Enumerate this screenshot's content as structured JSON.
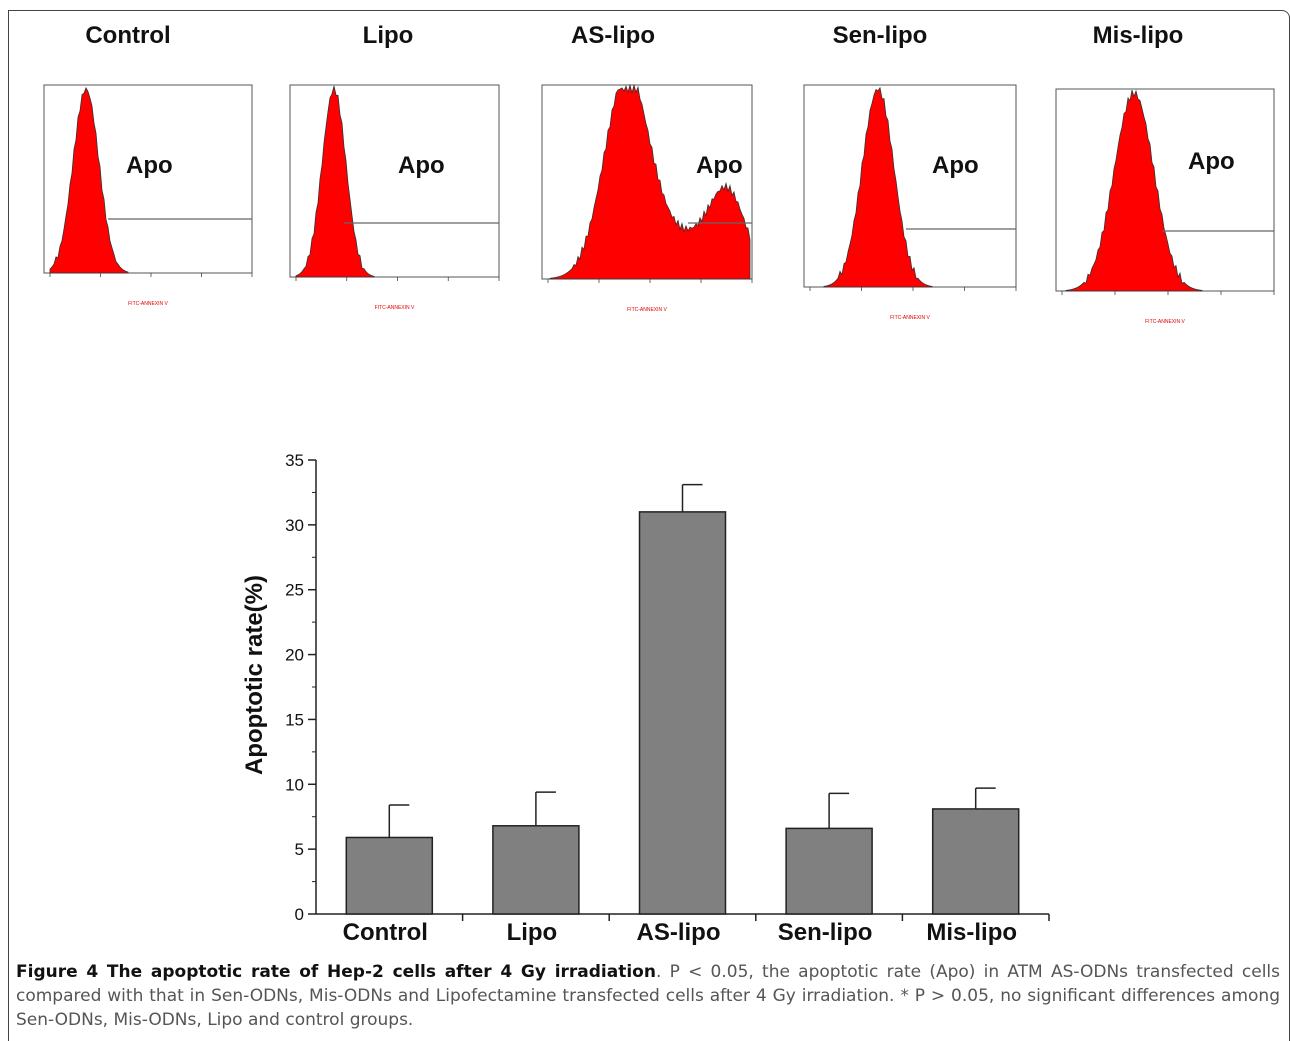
{
  "panels": [
    {
      "title": "Control",
      "gate_label": "Apo",
      "x_axis_label": "FITC-ANNEXIN V"
    },
    {
      "title": "Lipo",
      "gate_label": "Apo",
      "x_axis_label": "FITC-ANNEXIN V"
    },
    {
      "title": "AS-lipo",
      "gate_label": "Apo",
      "x_axis_label": "FITC-ANNEXIN V"
    },
    {
      "title": "Sen-lipo",
      "gate_label": "Apo",
      "x_axis_label": "FITC-ANNEXIN V"
    },
    {
      "title": "Mis-lipo",
      "gate_label": "Apo",
      "x_axis_label": "FITC-ANNEXIN V"
    }
  ],
  "chart_data": {
    "type": "bar",
    "categories": [
      "Control",
      "Lipo",
      "AS-lipo",
      "Sen-lipo",
      "Mis-lipo"
    ],
    "values": [
      5.9,
      6.8,
      31.0,
      6.6,
      8.1
    ],
    "errors": [
      2.5,
      2.6,
      2.1,
      2.7,
      1.6
    ],
    "ylabel": "Apoptotic rate(%)",
    "xlabel": "",
    "ylim": [
      0,
      35
    ],
    "yticks": [
      0,
      5,
      10,
      15,
      20,
      25,
      30,
      35
    ],
    "bar_color": "#808080",
    "grid": false
  },
  "caption": {
    "bold": "Figure 4 The apoptotic rate of Hep-2 cells after 4 Gy irradiation",
    "text": ". P < 0.05, the apoptotic rate (Apo) in ATM AS-ODNs transfected cells compared with that in Sen-ODNs, Mis-ODNs and Lipofectamine transfected cells after 4 Gy irradiation. * P > 0.05, no significant differences among Sen-ODNs, Mis-ODNs, Lipo and control groups."
  },
  "colors": {
    "histogram_fill": "#ff0000",
    "axis": "#222222"
  }
}
